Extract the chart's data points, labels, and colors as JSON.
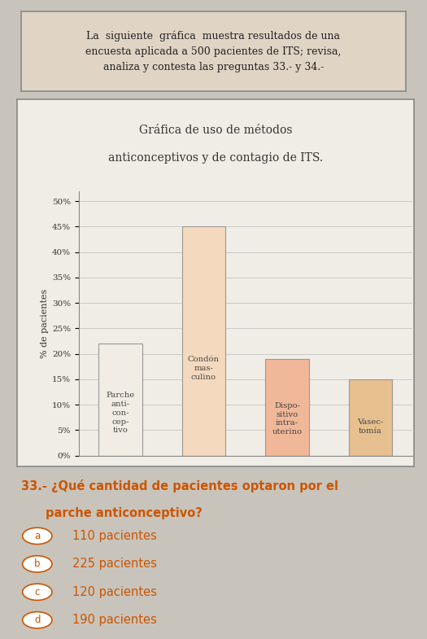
{
  "intro_text": "La  siguiente  gráfica  muestra resultados de una\nencuesta aplicada a 500 pacientes de ITS; revisa,\nanaliza y contesta las preguntas 33.- y 34.-",
  "chart_title_line1": "Gráfica de uso de métodos",
  "chart_title_line2": "anticonceptivos y de contagio de ITS.",
  "categories": [
    "Parche\nanti-\ncon-\ncep-\ntivo",
    "Condón\nmas-\nculino",
    "Dispo-\nsitivo\nintra-\nuterino",
    "Vasec-\ntomía"
  ],
  "values": [
    22,
    45,
    19,
    15
  ],
  "bar_colors": [
    "#f2ede4",
    "#f5d9be",
    "#f0b898",
    "#e8c090"
  ],
  "bar_edgecolors": [
    "#999999",
    "#999999",
    "#999999",
    "#999999"
  ],
  "ylabel": "% de pacientes",
  "yticks": [
    0,
    5,
    10,
    15,
    20,
    25,
    30,
    35,
    40,
    45,
    50
  ],
  "ylim": [
    0,
    52
  ],
  "chart_bg": "#f0ede6",
  "question_text": "33.- ¿Qué cantidad de pacientes optaron por el\n      parche anticonceptivo?",
  "option_labels": [
    "a",
    "b",
    "c",
    "d"
  ],
  "option_values": [
    "110 pacientes",
    "225 pacientes",
    "120 pacientes",
    "190 pacientes"
  ],
  "orange_color": "#cc5500",
  "intro_bg": "#e0d5c5",
  "page_bg": "#c8c4bc",
  "chart_border_color": "#888888",
  "intro_border_color": "#888888"
}
